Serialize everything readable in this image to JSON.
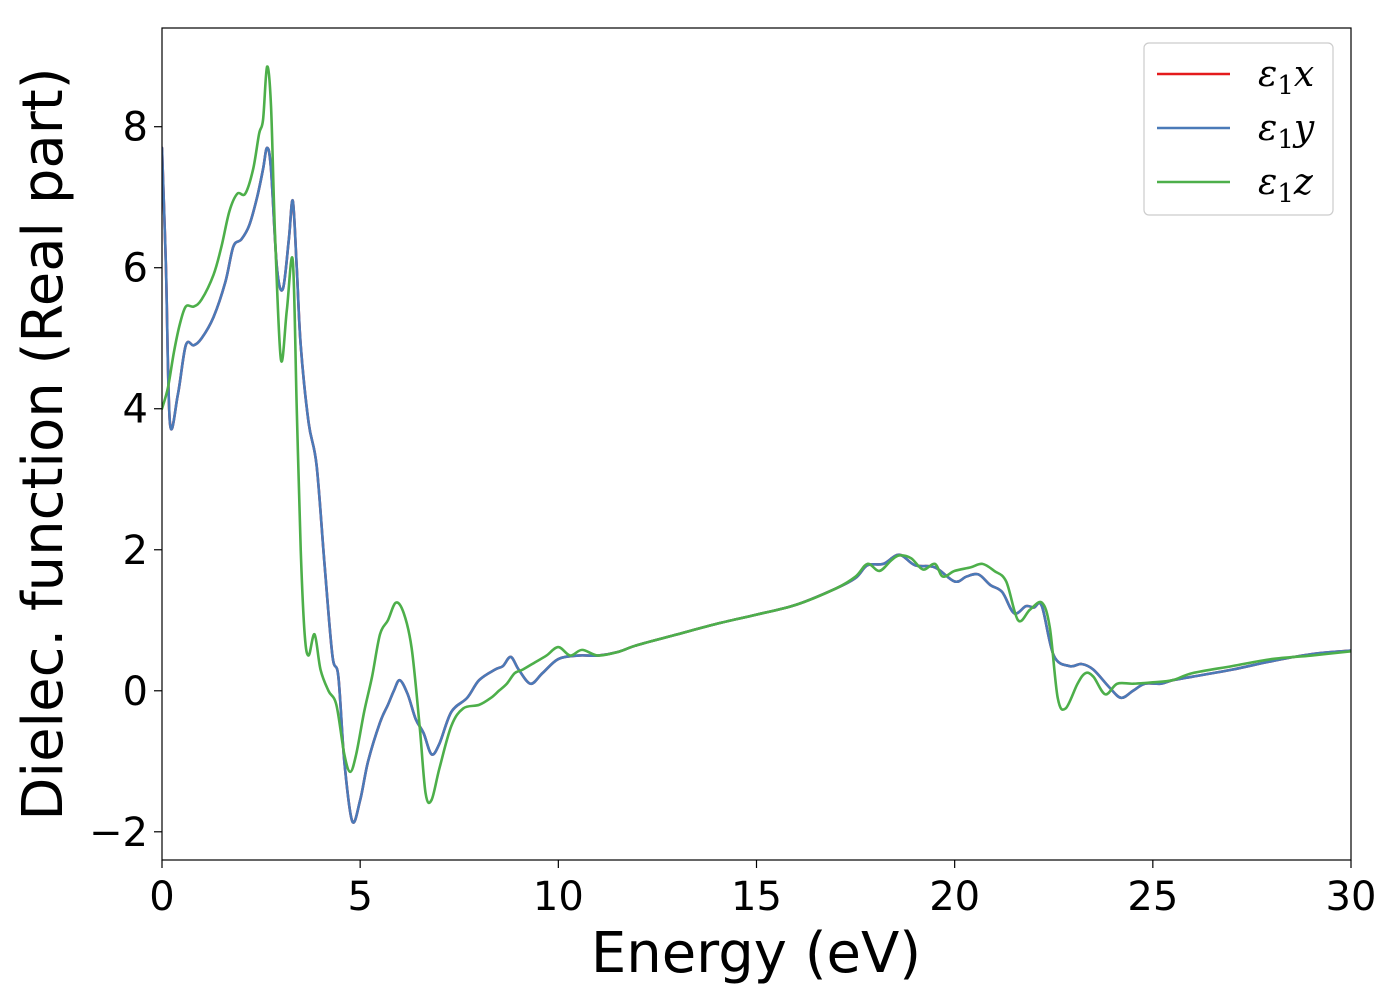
{
  "chart_data": {
    "type": "line",
    "xlabel": "Energy (eV)",
    "ylabel": "Dielec. function (Real part)",
    "xlim": [
      0,
      30
    ],
    "ylim": [
      -2.4,
      9.4
    ],
    "xticks": [
      0,
      5,
      10,
      15,
      20,
      25,
      30
    ],
    "yticks": [
      -2,
      0,
      2,
      4,
      6,
      8
    ],
    "xtick_labels": [
      "0",
      "5",
      "10",
      "15",
      "20",
      "25",
      "30"
    ],
    "ytick_labels": [
      "−2",
      "0",
      "2",
      "4",
      "6",
      "8"
    ],
    "grid": false,
    "legend_position": "top-right",
    "series": [
      {
        "name": "ε₁x",
        "legend_base": "ε",
        "legend_sub": "1",
        "legend_suffix": "x",
        "color": "#e41a1c",
        "points": [
          [
            0,
            7.7
          ],
          [
            0.1,
            6.0
          ],
          [
            0.2,
            3.8
          ],
          [
            0.4,
            4.2
          ],
          [
            0.6,
            4.9
          ],
          [
            0.8,
            4.9
          ],
          [
            1.0,
            5.0
          ],
          [
            1.3,
            5.3
          ],
          [
            1.6,
            5.8
          ],
          [
            1.8,
            6.3
          ],
          [
            2.0,
            6.4
          ],
          [
            2.2,
            6.6
          ],
          [
            2.4,
            7.0
          ],
          [
            2.55,
            7.4
          ],
          [
            2.65,
            7.7
          ],
          [
            2.75,
            7.4
          ],
          [
            2.9,
            6.0
          ],
          [
            3.05,
            5.7
          ],
          [
            3.2,
            6.4
          ],
          [
            3.3,
            6.95
          ],
          [
            3.4,
            6.0
          ],
          [
            3.5,
            4.9
          ],
          [
            3.7,
            3.8
          ],
          [
            3.9,
            3.2
          ],
          [
            4.1,
            1.8
          ],
          [
            4.3,
            0.5
          ],
          [
            4.45,
            0.2
          ],
          [
            4.6,
            -1.0
          ],
          [
            4.8,
            -1.85
          ],
          [
            5.0,
            -1.55
          ],
          [
            5.2,
            -1.0
          ],
          [
            5.5,
            -0.45
          ],
          [
            5.7,
            -0.2
          ],
          [
            5.85,
            0.0
          ],
          [
            6.0,
            0.15
          ],
          [
            6.2,
            -0.05
          ],
          [
            6.4,
            -0.4
          ],
          [
            6.6,
            -0.6
          ],
          [
            6.8,
            -0.9
          ],
          [
            7.0,
            -0.75
          ],
          [
            7.3,
            -0.3
          ],
          [
            7.7,
            -0.1
          ],
          [
            8.0,
            0.15
          ],
          [
            8.4,
            0.3
          ],
          [
            8.6,
            0.35
          ],
          [
            8.8,
            0.48
          ],
          [
            9.0,
            0.3
          ],
          [
            9.3,
            0.1
          ],
          [
            9.6,
            0.25
          ],
          [
            10.0,
            0.45
          ],
          [
            10.5,
            0.5
          ],
          [
            11.0,
            0.5
          ],
          [
            11.5,
            0.55
          ],
          [
            12.0,
            0.65
          ],
          [
            13.0,
            0.8
          ],
          [
            14.0,
            0.95
          ],
          [
            15.0,
            1.08
          ],
          [
            16.0,
            1.22
          ],
          [
            17.0,
            1.45
          ],
          [
            17.5,
            1.6
          ],
          [
            17.8,
            1.78
          ],
          [
            18.2,
            1.8
          ],
          [
            18.6,
            1.93
          ],
          [
            19.0,
            1.78
          ],
          [
            19.5,
            1.75
          ],
          [
            20.0,
            1.55
          ],
          [
            20.3,
            1.62
          ],
          [
            20.6,
            1.65
          ],
          [
            20.9,
            1.5
          ],
          [
            21.2,
            1.4
          ],
          [
            21.5,
            1.1
          ],
          [
            21.8,
            1.2
          ],
          [
            22.0,
            1.18
          ],
          [
            22.2,
            1.2
          ],
          [
            22.5,
            0.5
          ],
          [
            22.9,
            0.35
          ],
          [
            23.2,
            0.38
          ],
          [
            23.5,
            0.3
          ],
          [
            23.9,
            0.05
          ],
          [
            24.2,
            -0.1
          ],
          [
            24.5,
            0.0
          ],
          [
            24.8,
            0.1
          ],
          [
            25.2,
            0.1
          ],
          [
            25.5,
            0.15
          ],
          [
            26.0,
            0.2
          ],
          [
            27.0,
            0.3
          ],
          [
            28.0,
            0.42
          ],
          [
            29.0,
            0.52
          ],
          [
            30.0,
            0.57
          ]
        ]
      },
      {
        "name": "ε₁y",
        "legend_base": "ε",
        "legend_sub": "1",
        "legend_suffix": "y",
        "color": "#4a7ab8",
        "points": [
          [
            0,
            7.7
          ],
          [
            0.1,
            6.0
          ],
          [
            0.2,
            3.8
          ],
          [
            0.4,
            4.2
          ],
          [
            0.6,
            4.9
          ],
          [
            0.8,
            4.9
          ],
          [
            1.0,
            5.0
          ],
          [
            1.3,
            5.3
          ],
          [
            1.6,
            5.8
          ],
          [
            1.8,
            6.3
          ],
          [
            2.0,
            6.4
          ],
          [
            2.2,
            6.6
          ],
          [
            2.4,
            7.0
          ],
          [
            2.55,
            7.4
          ],
          [
            2.65,
            7.7
          ],
          [
            2.75,
            7.4
          ],
          [
            2.9,
            6.0
          ],
          [
            3.05,
            5.7
          ],
          [
            3.2,
            6.4
          ],
          [
            3.3,
            6.95
          ],
          [
            3.4,
            6.0
          ],
          [
            3.5,
            4.9
          ],
          [
            3.7,
            3.8
          ],
          [
            3.9,
            3.2
          ],
          [
            4.1,
            1.8
          ],
          [
            4.3,
            0.5
          ],
          [
            4.45,
            0.2
          ],
          [
            4.6,
            -1.0
          ],
          [
            4.8,
            -1.85
          ],
          [
            5.0,
            -1.55
          ],
          [
            5.2,
            -1.0
          ],
          [
            5.5,
            -0.45
          ],
          [
            5.7,
            -0.2
          ],
          [
            5.85,
            0.0
          ],
          [
            6.0,
            0.15
          ],
          [
            6.2,
            -0.05
          ],
          [
            6.4,
            -0.4
          ],
          [
            6.6,
            -0.6
          ],
          [
            6.8,
            -0.9
          ],
          [
            7.0,
            -0.75
          ],
          [
            7.3,
            -0.3
          ],
          [
            7.7,
            -0.1
          ],
          [
            8.0,
            0.15
          ],
          [
            8.4,
            0.3
          ],
          [
            8.6,
            0.35
          ],
          [
            8.8,
            0.48
          ],
          [
            9.0,
            0.3
          ],
          [
            9.3,
            0.1
          ],
          [
            9.6,
            0.25
          ],
          [
            10.0,
            0.45
          ],
          [
            10.5,
            0.5
          ],
          [
            11.0,
            0.5
          ],
          [
            11.5,
            0.55
          ],
          [
            12.0,
            0.65
          ],
          [
            13.0,
            0.8
          ],
          [
            14.0,
            0.95
          ],
          [
            15.0,
            1.08
          ],
          [
            16.0,
            1.22
          ],
          [
            17.0,
            1.45
          ],
          [
            17.5,
            1.6
          ],
          [
            17.8,
            1.78
          ],
          [
            18.2,
            1.8
          ],
          [
            18.6,
            1.93
          ],
          [
            19.0,
            1.78
          ],
          [
            19.5,
            1.75
          ],
          [
            20.0,
            1.55
          ],
          [
            20.3,
            1.62
          ],
          [
            20.6,
            1.65
          ],
          [
            20.9,
            1.5
          ],
          [
            21.2,
            1.4
          ],
          [
            21.5,
            1.1
          ],
          [
            21.8,
            1.2
          ],
          [
            22.0,
            1.18
          ],
          [
            22.2,
            1.2
          ],
          [
            22.5,
            0.5
          ],
          [
            22.9,
            0.35
          ],
          [
            23.2,
            0.38
          ],
          [
            23.5,
            0.3
          ],
          [
            23.9,
            0.05
          ],
          [
            24.2,
            -0.1
          ],
          [
            24.5,
            0.0
          ],
          [
            24.8,
            0.1
          ],
          [
            25.2,
            0.1
          ],
          [
            25.5,
            0.15
          ],
          [
            26.0,
            0.2
          ],
          [
            27.0,
            0.3
          ],
          [
            28.0,
            0.42
          ],
          [
            29.0,
            0.52
          ],
          [
            30.0,
            0.57
          ]
        ]
      },
      {
        "name": "ε₁z",
        "legend_base": "ε",
        "legend_sub": "1",
        "legend_suffix": "z",
        "color": "#4daf4a",
        "points": [
          [
            0,
            4.0
          ],
          [
            0.15,
            4.3
          ],
          [
            0.3,
            4.8
          ],
          [
            0.45,
            5.2
          ],
          [
            0.6,
            5.45
          ],
          [
            0.8,
            5.45
          ],
          [
            1.0,
            5.55
          ],
          [
            1.3,
            5.9
          ],
          [
            1.5,
            6.3
          ],
          [
            1.7,
            6.8
          ],
          [
            1.9,
            7.05
          ],
          [
            2.1,
            7.05
          ],
          [
            2.3,
            7.4
          ],
          [
            2.45,
            7.9
          ],
          [
            2.55,
            8.1
          ],
          [
            2.65,
            8.85
          ],
          [
            2.75,
            8.3
          ],
          [
            2.85,
            6.5
          ],
          [
            3.0,
            4.7
          ],
          [
            3.15,
            5.4
          ],
          [
            3.3,
            6.1
          ],
          [
            3.4,
            4.0
          ],
          [
            3.5,
            2.0
          ],
          [
            3.6,
            0.8
          ],
          [
            3.7,
            0.5
          ],
          [
            3.85,
            0.8
          ],
          [
            4.0,
            0.3
          ],
          [
            4.2,
            0.0
          ],
          [
            4.4,
            -0.2
          ],
          [
            4.6,
            -0.9
          ],
          [
            4.75,
            -1.15
          ],
          [
            4.9,
            -0.9
          ],
          [
            5.1,
            -0.3
          ],
          [
            5.3,
            0.2
          ],
          [
            5.5,
            0.8
          ],
          [
            5.7,
            1.0
          ],
          [
            5.9,
            1.25
          ],
          [
            6.1,
            1.1
          ],
          [
            6.3,
            0.6
          ],
          [
            6.5,
            -0.5
          ],
          [
            6.65,
            -1.45
          ],
          [
            6.8,
            -1.55
          ],
          [
            7.0,
            -1.1
          ],
          [
            7.3,
            -0.5
          ],
          [
            7.6,
            -0.25
          ],
          [
            8.0,
            -0.2
          ],
          [
            8.3,
            -0.1
          ],
          [
            8.5,
            0.0
          ],
          [
            8.7,
            0.1
          ],
          [
            8.9,
            0.25
          ],
          [
            9.1,
            0.3
          ],
          [
            9.4,
            0.4
          ],
          [
            9.7,
            0.5
          ],
          [
            10.0,
            0.62
          ],
          [
            10.3,
            0.5
          ],
          [
            10.6,
            0.58
          ],
          [
            11.0,
            0.5
          ],
          [
            11.5,
            0.55
          ],
          [
            12.0,
            0.65
          ],
          [
            13.0,
            0.8
          ],
          [
            14.0,
            0.95
          ],
          [
            15.0,
            1.08
          ],
          [
            16.0,
            1.22
          ],
          [
            17.0,
            1.45
          ],
          [
            17.5,
            1.62
          ],
          [
            17.8,
            1.8
          ],
          [
            18.1,
            1.7
          ],
          [
            18.4,
            1.85
          ],
          [
            18.6,
            1.92
          ],
          [
            18.9,
            1.88
          ],
          [
            19.2,
            1.72
          ],
          [
            19.5,
            1.8
          ],
          [
            19.7,
            1.62
          ],
          [
            20.0,
            1.7
          ],
          [
            20.4,
            1.75
          ],
          [
            20.7,
            1.8
          ],
          [
            21.0,
            1.7
          ],
          [
            21.3,
            1.55
          ],
          [
            21.6,
            1.0
          ],
          [
            21.9,
            1.15
          ],
          [
            22.2,
            1.25
          ],
          [
            22.4,
            0.9
          ],
          [
            22.6,
            -0.1
          ],
          [
            22.8,
            -0.25
          ],
          [
            23.1,
            0.1
          ],
          [
            23.3,
            0.25
          ],
          [
            23.5,
            0.2
          ],
          [
            23.8,
            -0.05
          ],
          [
            24.1,
            0.1
          ],
          [
            24.5,
            0.1
          ],
          [
            25.0,
            0.12
          ],
          [
            25.5,
            0.15
          ],
          [
            26.0,
            0.25
          ],
          [
            27.0,
            0.35
          ],
          [
            28.0,
            0.45
          ],
          [
            29.0,
            0.5
          ],
          [
            30.0,
            0.56
          ]
        ]
      }
    ]
  }
}
